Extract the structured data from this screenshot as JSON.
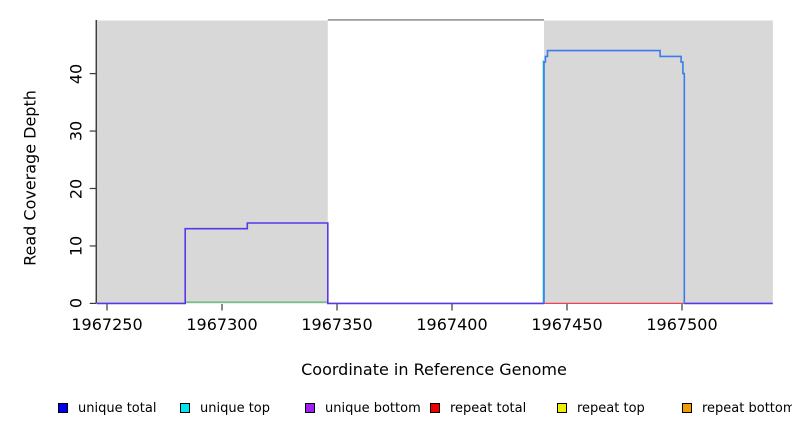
{
  "chart_data": {
    "type": "line",
    "subtype": "step-coverage",
    "title": "",
    "xlabel": "Coordinate in Reference Genome",
    "ylabel": "Read Coverage Depth",
    "xlim": [
      1967245.6,
      1967539.5
    ],
    "ylim": [
      0,
      49.3
    ],
    "grid": false,
    "x_ticks": [
      1967250,
      1967300,
      1967350,
      1967400,
      1967450,
      1967500
    ],
    "y_ticks": [
      0,
      10,
      20,
      30,
      40
    ],
    "background_regions": [
      {
        "name": "shaded-region-left",
        "x0": 1967245.6,
        "x1": 1967346,
        "fill": "#d8d8d8"
      },
      {
        "name": "unshaded-region-middle",
        "x0": 1967346,
        "x1": 1967440,
        "fill": "#ffffff",
        "top_border": "#808080"
      },
      {
        "name": "shaded-region-right",
        "x0": 1967440,
        "x1": 1967539.5,
        "fill": "#d8d8d8"
      }
    ],
    "series": [
      {
        "name": "baseline-green",
        "color": "#58b768",
        "width": 1.3,
        "dy": -1.3,
        "lines": [
          [
            [
              1967284,
              0
            ],
            [
              1967346,
              0
            ]
          ]
        ]
      },
      {
        "name": "repeat-total-line",
        "color": "#ee4455",
        "width": 1.3,
        "lines": [
          [
            [
              1967440,
              0
            ],
            [
              1967501,
              0
            ]
          ]
        ]
      },
      {
        "name": "unique-top-line",
        "color": "#00cfdf",
        "width": 1.2,
        "lines": [
          [
            [
              1967439.7,
              0
            ],
            [
              1967439.7,
              42.3
            ]
          ]
        ]
      },
      {
        "name": "unique-bottom-line",
        "color": "#5b35e8",
        "width": 1.6,
        "lines": [
          [
            [
              1967245.6,
              0
            ],
            [
              1967284,
              0
            ],
            [
              1967284,
              13
            ],
            [
              1967311,
              13
            ],
            [
              1967311,
              14
            ],
            [
              1967346,
              14
            ],
            [
              1967346,
              0
            ],
            [
              1967440,
              0
            ]
          ],
          [
            [
              1967501,
              0
            ],
            [
              1967539.5,
              0
            ]
          ]
        ]
      },
      {
        "name": "unique-total-line",
        "color": "#3b7bed",
        "width": 1.6,
        "lines": [
          [
            [
              1967440,
              0
            ],
            [
              1967440,
              42
            ],
            [
              1967440.6,
              42
            ],
            [
              1967440.6,
              43
            ],
            [
              1967441.5,
              43
            ],
            [
              1967441.5,
              44
            ],
            [
              1967490.5,
              44
            ],
            [
              1967490.5,
              43
            ],
            [
              1967499.6,
              43
            ],
            [
              1967499.6,
              42
            ],
            [
              1967500.4,
              42
            ],
            [
              1967500.4,
              40
            ],
            [
              1967501,
              40
            ],
            [
              1967501,
              0
            ]
          ]
        ]
      }
    ],
    "legend_position": "bottom",
    "legend": [
      {
        "label": "unique total",
        "color": "#0000ee"
      },
      {
        "label": "unique top",
        "color": "#00e6ee"
      },
      {
        "label": "unique bottom",
        "color": "#a020f0"
      },
      {
        "label": "repeat total",
        "color": "#ee0000"
      },
      {
        "label": "repeat top",
        "color": "#eeee00"
      },
      {
        "label": "repeat bottom",
        "color": "#ee9c00"
      }
    ]
  }
}
